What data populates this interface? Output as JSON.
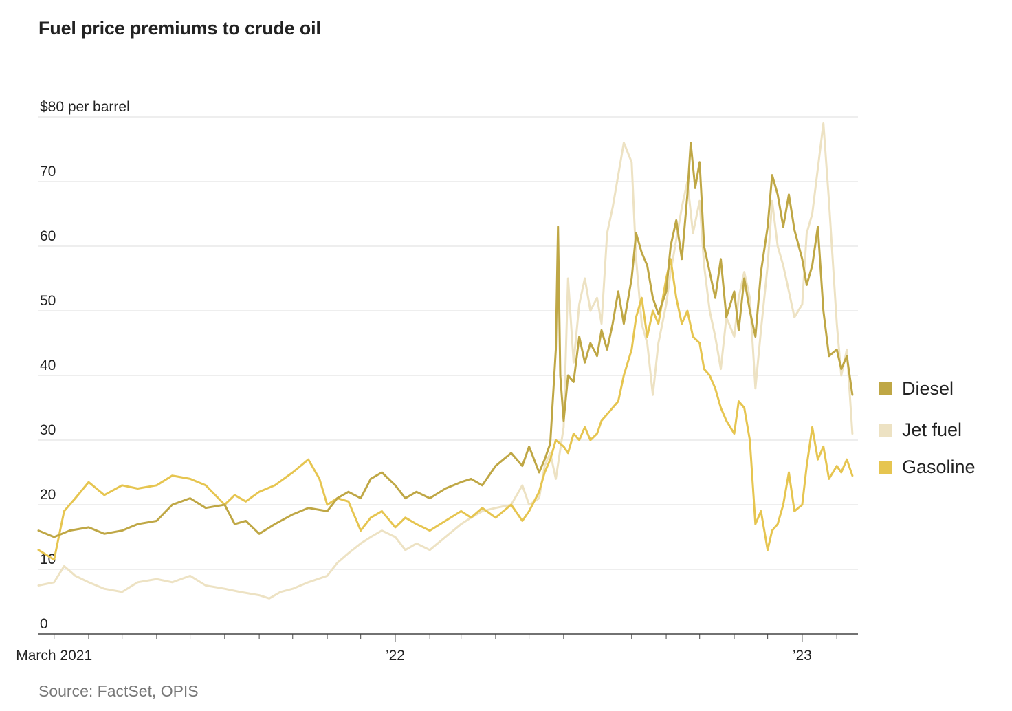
{
  "title": "Fuel price premiums to crude oil",
  "source": "Source: FactSet, OPIS",
  "chart_data": {
    "type": "line",
    "title": "Fuel price premiums to crude oil",
    "ylabel": "$80 per barrel",
    "ylim": [
      0,
      80
    ],
    "yticks": [
      0,
      10,
      20,
      30,
      40,
      50,
      60,
      70,
      80
    ],
    "ytick_labels": [
      "0",
      "10",
      "20",
      "30",
      "40",
      "50",
      "60",
      "70",
      "$80 per barrel"
    ],
    "xlim": [
      "2021-02-15",
      "2023-02-20"
    ],
    "xtick_labels": [
      {
        "date": "2021-03-01",
        "label": "March 2021"
      },
      {
        "date": "2022-01-01",
        "label": "’22"
      },
      {
        "date": "2023-01-01",
        "label": "’23"
      }
    ],
    "grid": "horizontal",
    "legend_position": "right",
    "series": [
      {
        "name": "Diesel",
        "color": "#bfa745",
        "points": [
          [
            "2021-02-15",
            16
          ],
          [
            "2021-03-01",
            15
          ],
          [
            "2021-03-15",
            16
          ],
          [
            "2021-04-01",
            16.5
          ],
          [
            "2021-04-15",
            15.5
          ],
          [
            "2021-05-01",
            16
          ],
          [
            "2021-05-15",
            17
          ],
          [
            "2021-06-01",
            17.5
          ],
          [
            "2021-06-15",
            20
          ],
          [
            "2021-07-01",
            21
          ],
          [
            "2021-07-15",
            19.5
          ],
          [
            "2021-08-01",
            20
          ],
          [
            "2021-08-10",
            17
          ],
          [
            "2021-08-20",
            17.5
          ],
          [
            "2021-09-01",
            15.5
          ],
          [
            "2021-09-15",
            17
          ],
          [
            "2021-10-01",
            18.5
          ],
          [
            "2021-10-15",
            19.5
          ],
          [
            "2021-11-01",
            19
          ],
          [
            "2021-11-10",
            21
          ],
          [
            "2021-11-20",
            22
          ],
          [
            "2021-12-01",
            21
          ],
          [
            "2021-12-10",
            24
          ],
          [
            "2021-12-20",
            25
          ],
          [
            "2022-01-01",
            23
          ],
          [
            "2022-01-10",
            21
          ],
          [
            "2022-01-20",
            22
          ],
          [
            "2022-02-01",
            21
          ],
          [
            "2022-02-15",
            22.5
          ],
          [
            "2022-03-01",
            23.5
          ],
          [
            "2022-03-10",
            24
          ],
          [
            "2022-03-20",
            23
          ],
          [
            "2022-04-01",
            26
          ],
          [
            "2022-04-15",
            28
          ],
          [
            "2022-04-25",
            26
          ],
          [
            "2022-05-01",
            29
          ],
          [
            "2022-05-10",
            25
          ],
          [
            "2022-05-15",
            27
          ],
          [
            "2022-05-20",
            29.5
          ],
          [
            "2022-05-25",
            44
          ],
          [
            "2022-05-27",
            63
          ],
          [
            "2022-05-29",
            40
          ],
          [
            "2022-06-01",
            33
          ],
          [
            "2022-06-05",
            40
          ],
          [
            "2022-06-10",
            39
          ],
          [
            "2022-06-15",
            46
          ],
          [
            "2022-06-20",
            42
          ],
          [
            "2022-06-25",
            45
          ],
          [
            "2022-07-01",
            43
          ],
          [
            "2022-07-05",
            47
          ],
          [
            "2022-07-10",
            44
          ],
          [
            "2022-07-15",
            48
          ],
          [
            "2022-07-20",
            53
          ],
          [
            "2022-07-25",
            48
          ],
          [
            "2022-08-01",
            55
          ],
          [
            "2022-08-05",
            62
          ],
          [
            "2022-08-10",
            59
          ],
          [
            "2022-08-15",
            57
          ],
          [
            "2022-08-20",
            52
          ],
          [
            "2022-08-25",
            49.5
          ],
          [
            "2022-09-01",
            53
          ],
          [
            "2022-09-05",
            60
          ],
          [
            "2022-09-10",
            64
          ],
          [
            "2022-09-15",
            58
          ],
          [
            "2022-09-20",
            68
          ],
          [
            "2022-09-23",
            76
          ],
          [
            "2022-09-27",
            69
          ],
          [
            "2022-10-01",
            73
          ],
          [
            "2022-10-05",
            60
          ],
          [
            "2022-10-10",
            56
          ],
          [
            "2022-10-15",
            52
          ],
          [
            "2022-10-20",
            58
          ],
          [
            "2022-10-25",
            49
          ],
          [
            "2022-11-01",
            53
          ],
          [
            "2022-11-05",
            47
          ],
          [
            "2022-11-10",
            55
          ],
          [
            "2022-11-15",
            50
          ],
          [
            "2022-11-20",
            46
          ],
          [
            "2022-11-25",
            56
          ],
          [
            "2022-12-01",
            63
          ],
          [
            "2022-12-05",
            71
          ],
          [
            "2022-12-10",
            68
          ],
          [
            "2022-12-15",
            63
          ],
          [
            "2022-12-20",
            68
          ],
          [
            "2022-12-25",
            62.5
          ],
          [
            "2023-01-01",
            58
          ],
          [
            "2023-01-05",
            54
          ],
          [
            "2023-01-10",
            57
          ],
          [
            "2023-01-15",
            63
          ],
          [
            "2023-01-20",
            50
          ],
          [
            "2023-01-25",
            43
          ],
          [
            "2023-02-01",
            44
          ],
          [
            "2023-02-05",
            41
          ],
          [
            "2023-02-10",
            43
          ],
          [
            "2023-02-15",
            37
          ]
        ]
      },
      {
        "name": "Jet fuel",
        "color": "#ede2c3",
        "points": [
          [
            "2021-02-15",
            7.5
          ],
          [
            "2021-03-01",
            8
          ],
          [
            "2021-03-10",
            10.5
          ],
          [
            "2021-03-20",
            9
          ],
          [
            "2021-04-01",
            8
          ],
          [
            "2021-04-15",
            7
          ],
          [
            "2021-05-01",
            6.5
          ],
          [
            "2021-05-15",
            8
          ],
          [
            "2021-06-01",
            8.5
          ],
          [
            "2021-06-15",
            8
          ],
          [
            "2021-07-01",
            9
          ],
          [
            "2021-07-15",
            7.5
          ],
          [
            "2021-08-01",
            7
          ],
          [
            "2021-08-15",
            6.5
          ],
          [
            "2021-09-01",
            6
          ],
          [
            "2021-09-10",
            5.5
          ],
          [
            "2021-09-20",
            6.5
          ],
          [
            "2021-10-01",
            7
          ],
          [
            "2021-10-15",
            8
          ],
          [
            "2021-11-01",
            9
          ],
          [
            "2021-11-10",
            11
          ],
          [
            "2021-11-20",
            12.5
          ],
          [
            "2021-12-01",
            14
          ],
          [
            "2021-12-10",
            15
          ],
          [
            "2021-12-20",
            16
          ],
          [
            "2022-01-01",
            15
          ],
          [
            "2022-01-10",
            13
          ],
          [
            "2022-01-20",
            14
          ],
          [
            "2022-02-01",
            13
          ],
          [
            "2022-02-15",
            15
          ],
          [
            "2022-03-01",
            17
          ],
          [
            "2022-03-10",
            18
          ],
          [
            "2022-03-20",
            19
          ],
          [
            "2022-04-01",
            19.5
          ],
          [
            "2022-04-15",
            20
          ],
          [
            "2022-04-25",
            23
          ],
          [
            "2022-05-01",
            20
          ],
          [
            "2022-05-10",
            21
          ],
          [
            "2022-05-15",
            26
          ],
          [
            "2022-05-20",
            28
          ],
          [
            "2022-05-25",
            24
          ],
          [
            "2022-06-01",
            32
          ],
          [
            "2022-06-05",
            55
          ],
          [
            "2022-06-10",
            42
          ],
          [
            "2022-06-15",
            51
          ],
          [
            "2022-06-20",
            55
          ],
          [
            "2022-06-25",
            50
          ],
          [
            "2022-07-01",
            52
          ],
          [
            "2022-07-05",
            48
          ],
          [
            "2022-07-10",
            62
          ],
          [
            "2022-07-15",
            66
          ],
          [
            "2022-07-20",
            71
          ],
          [
            "2022-07-25",
            76
          ],
          [
            "2022-08-01",
            73
          ],
          [
            "2022-08-05",
            58
          ],
          [
            "2022-08-10",
            48
          ],
          [
            "2022-08-15",
            45
          ],
          [
            "2022-08-20",
            37
          ],
          [
            "2022-08-25",
            45
          ],
          [
            "2022-09-01",
            51
          ],
          [
            "2022-09-05",
            56
          ],
          [
            "2022-09-10",
            61
          ],
          [
            "2022-09-15",
            66
          ],
          [
            "2022-09-20",
            70
          ],
          [
            "2022-09-25",
            62
          ],
          [
            "2022-10-01",
            67
          ],
          [
            "2022-10-05",
            57
          ],
          [
            "2022-10-10",
            50
          ],
          [
            "2022-10-15",
            46
          ],
          [
            "2022-10-20",
            41
          ],
          [
            "2022-10-25",
            49
          ],
          [
            "2022-11-01",
            46
          ],
          [
            "2022-11-05",
            52
          ],
          [
            "2022-11-10",
            56
          ],
          [
            "2022-11-15",
            52
          ],
          [
            "2022-11-20",
            38
          ],
          [
            "2022-11-25",
            47
          ],
          [
            "2022-12-01",
            57
          ],
          [
            "2022-12-05",
            67
          ],
          [
            "2022-12-10",
            60
          ],
          [
            "2022-12-15",
            57
          ],
          [
            "2022-12-20",
            53
          ],
          [
            "2022-12-25",
            49
          ],
          [
            "2023-01-01",
            51
          ],
          [
            "2023-01-05",
            62
          ],
          [
            "2023-01-10",
            65
          ],
          [
            "2023-01-15",
            72
          ],
          [
            "2023-01-20",
            79
          ],
          [
            "2023-01-25",
            67
          ],
          [
            "2023-02-01",
            48
          ],
          [
            "2023-02-05",
            40
          ],
          [
            "2023-02-10",
            44
          ],
          [
            "2023-02-15",
            31
          ]
        ]
      },
      {
        "name": "Gasoline",
        "color": "#e6c550",
        "points": [
          [
            "2021-02-15",
            13
          ],
          [
            "2021-03-01",
            11.5
          ],
          [
            "2021-03-10",
            19
          ],
          [
            "2021-03-20",
            21
          ],
          [
            "2021-04-01",
            23.5
          ],
          [
            "2021-04-15",
            21.5
          ],
          [
            "2021-05-01",
            23
          ],
          [
            "2021-05-15",
            22.5
          ],
          [
            "2021-06-01",
            23
          ],
          [
            "2021-06-15",
            24.5
          ],
          [
            "2021-07-01",
            24
          ],
          [
            "2021-07-15",
            23
          ],
          [
            "2021-08-01",
            20
          ],
          [
            "2021-08-10",
            21.5
          ],
          [
            "2021-08-20",
            20.5
          ],
          [
            "2021-09-01",
            22
          ],
          [
            "2021-09-15",
            23
          ],
          [
            "2021-10-01",
            25
          ],
          [
            "2021-10-15",
            27
          ],
          [
            "2021-10-25",
            24
          ],
          [
            "2021-11-01",
            20
          ],
          [
            "2021-11-10",
            21
          ],
          [
            "2021-11-20",
            20.5
          ],
          [
            "2021-12-01",
            16
          ],
          [
            "2021-12-10",
            18
          ],
          [
            "2021-12-20",
            19
          ],
          [
            "2022-01-01",
            16.5
          ],
          [
            "2022-01-10",
            18
          ],
          [
            "2022-01-20",
            17
          ],
          [
            "2022-02-01",
            16
          ],
          [
            "2022-02-15",
            17.5
          ],
          [
            "2022-03-01",
            19
          ],
          [
            "2022-03-10",
            18
          ],
          [
            "2022-03-20",
            19.5
          ],
          [
            "2022-04-01",
            18
          ],
          [
            "2022-04-15",
            20
          ],
          [
            "2022-04-25",
            17.5
          ],
          [
            "2022-05-01",
            19
          ],
          [
            "2022-05-10",
            22
          ],
          [
            "2022-05-15",
            25
          ],
          [
            "2022-05-20",
            27
          ],
          [
            "2022-05-25",
            30
          ],
          [
            "2022-06-01",
            29
          ],
          [
            "2022-06-05",
            28
          ],
          [
            "2022-06-10",
            31
          ],
          [
            "2022-06-15",
            30
          ],
          [
            "2022-06-20",
            32
          ],
          [
            "2022-06-25",
            30
          ],
          [
            "2022-07-01",
            31
          ],
          [
            "2022-07-05",
            33
          ],
          [
            "2022-07-10",
            34
          ],
          [
            "2022-07-15",
            35
          ],
          [
            "2022-07-20",
            36
          ],
          [
            "2022-07-25",
            40
          ],
          [
            "2022-08-01",
            44
          ],
          [
            "2022-08-05",
            49
          ],
          [
            "2022-08-10",
            52
          ],
          [
            "2022-08-15",
            46
          ],
          [
            "2022-08-20",
            50
          ],
          [
            "2022-08-25",
            48
          ],
          [
            "2022-09-01",
            55
          ],
          [
            "2022-09-05",
            58
          ],
          [
            "2022-09-10",
            52
          ],
          [
            "2022-09-15",
            48
          ],
          [
            "2022-09-20",
            50
          ],
          [
            "2022-09-25",
            46
          ],
          [
            "2022-10-01",
            45
          ],
          [
            "2022-10-05",
            41
          ],
          [
            "2022-10-10",
            40
          ],
          [
            "2022-10-15",
            38
          ],
          [
            "2022-10-20",
            35
          ],
          [
            "2022-10-25",
            33
          ],
          [
            "2022-11-01",
            31
          ],
          [
            "2022-11-05",
            36
          ],
          [
            "2022-11-10",
            35
          ],
          [
            "2022-11-15",
            30
          ],
          [
            "2022-11-20",
            17
          ],
          [
            "2022-11-25",
            19
          ],
          [
            "2022-12-01",
            13
          ],
          [
            "2022-12-05",
            16
          ],
          [
            "2022-12-10",
            17
          ],
          [
            "2022-12-15",
            20
          ],
          [
            "2022-12-20",
            25
          ],
          [
            "2022-12-25",
            19
          ],
          [
            "2023-01-01",
            20
          ],
          [
            "2023-01-05",
            26
          ],
          [
            "2023-01-10",
            32
          ],
          [
            "2023-01-15",
            27
          ],
          [
            "2023-01-20",
            29
          ],
          [
            "2023-01-25",
            24
          ],
          [
            "2023-02-01",
            26
          ],
          [
            "2023-02-05",
            25
          ],
          [
            "2023-02-10",
            27
          ],
          [
            "2023-02-15",
            24.5
          ]
        ]
      }
    ]
  }
}
